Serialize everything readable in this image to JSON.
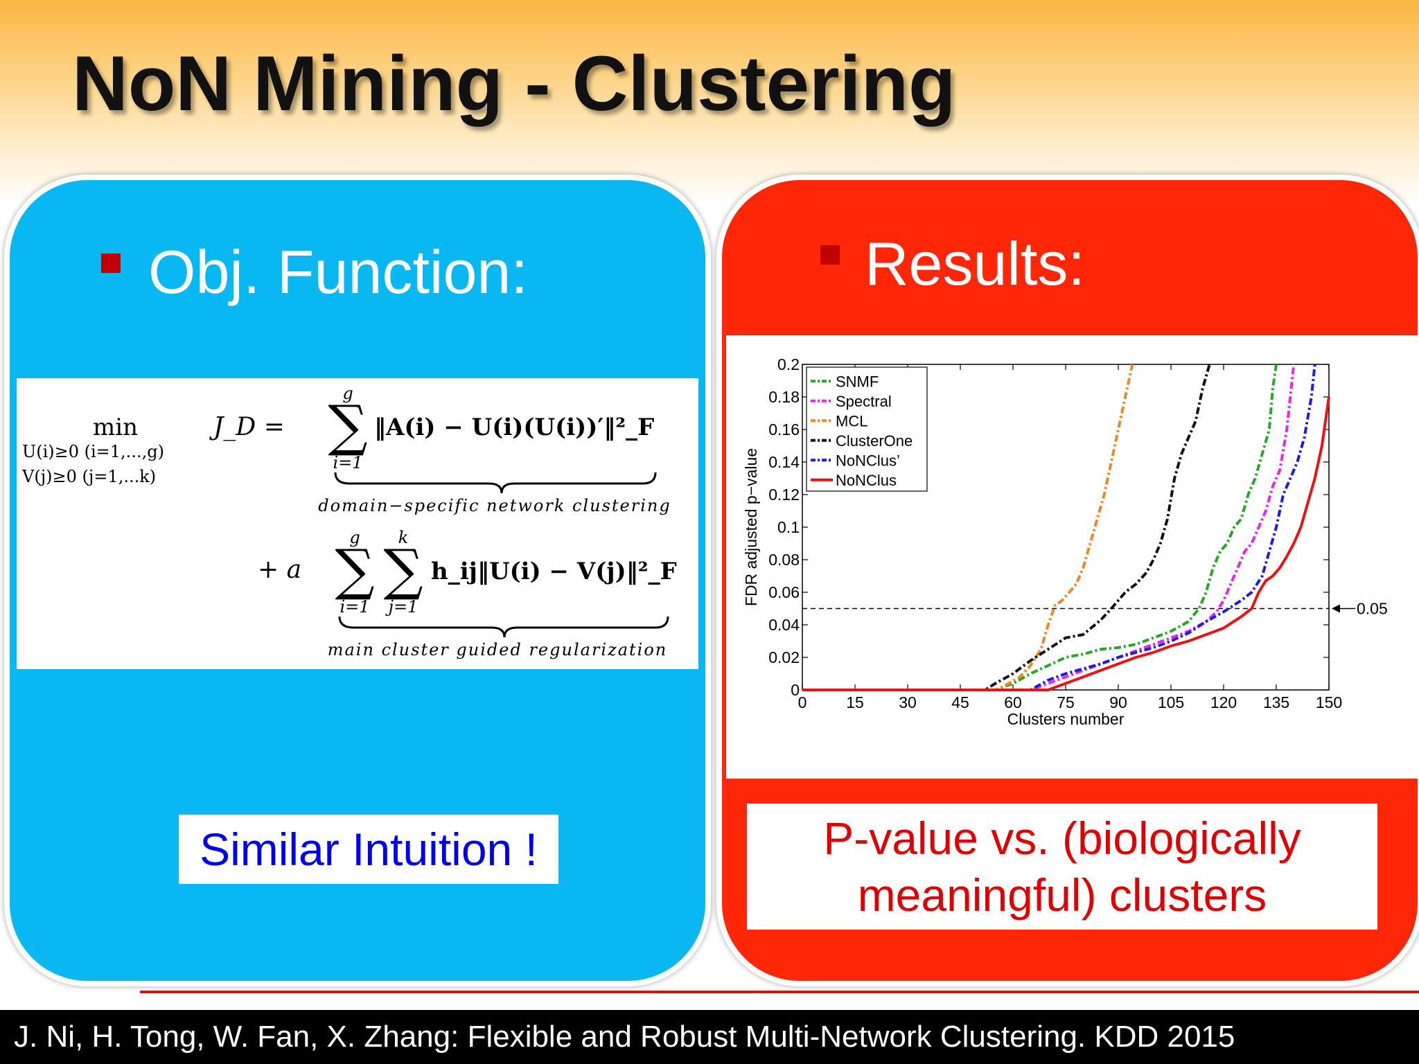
{
  "title": "NoN Mining - Clustering",
  "left_panel": {
    "heading": "Obj. Function:",
    "formula": {
      "min_op": "min",
      "min_sub_1": "U(i)≥0 (i=1,...,g)",
      "min_sub_2": "V(j)≥0 (j=1,...k)",
      "lhs": "J_D =",
      "term1": "‖A(i) − U(i)(U(i))′‖²_F",
      "term1_sum_top": "g",
      "term1_sum_bottom": "i=1",
      "term1_label": "domain−specific network clustering",
      "plus_a": "+ a",
      "term2": "h_ij‖U(i) − V(j)‖²_F",
      "term2_sum1_top": "g",
      "term2_sum1_bottom": "i=1",
      "term2_sum2_top": "k",
      "term2_sum2_bottom": "j=1",
      "term2_label": "main cluster guided regularization"
    },
    "note": "Similar Intuition !"
  },
  "right_panel": {
    "heading": "Results:",
    "caption_line1": "P-value vs. (biologically",
    "caption_line2": "meaningful) clusters"
  },
  "chart_data": {
    "type": "line",
    "xlabel": "Clusters number",
    "ylabel": "FDR adjusted p−value",
    "xlim": [
      0,
      150
    ],
    "ylim": [
      0,
      0.2
    ],
    "xticks": [
      0,
      15,
      30,
      45,
      60,
      75,
      90,
      105,
      120,
      135,
      150
    ],
    "yticks": [
      0,
      0.02,
      0.04,
      0.06,
      0.08,
      0.1,
      0.12,
      0.14,
      0.16,
      0.18,
      0.2
    ],
    "xtick_labels": [
      "0",
      "15",
      "30",
      "45",
      "60",
      "75",
      "90",
      "105",
      "120",
      "135",
      "150"
    ],
    "ytick_labels": [
      "0",
      "0.02",
      "0.04",
      "0.06",
      "0.08",
      "0.1",
      "0.12",
      "0.14",
      "0.16",
      "0.18",
      "0.2"
    ],
    "threshold": {
      "value": 0.05,
      "label": "0.05"
    },
    "legend_position": "top-left",
    "series": [
      {
        "name": "SNMF",
        "color": "#22aa22",
        "style": "dashdot",
        "x": [
          0,
          55,
          60,
          65,
          70,
          75,
          80,
          85,
          90,
          95,
          100,
          105,
          110,
          113,
          115,
          117,
          119,
          121,
          123,
          125,
          127,
          129,
          131,
          133,
          134,
          135
        ],
        "y": [
          0,
          0,
          0.004,
          0.01,
          0.015,
          0.02,
          0.022,
          0.025,
          0.026,
          0.028,
          0.032,
          0.036,
          0.042,
          0.05,
          0.06,
          0.075,
          0.085,
          0.09,
          0.1,
          0.105,
          0.12,
          0.13,
          0.145,
          0.16,
          0.185,
          0.2
        ]
      },
      {
        "name": "Spectral",
        "color": "#ee22ee",
        "style": "dashdot",
        "x": [
          0,
          65,
          70,
          75,
          80,
          85,
          90,
          95,
          100,
          105,
          110,
          115,
          118,
          120,
          122,
          124,
          126,
          128,
          130,
          132,
          134,
          136,
          138,
          140
        ],
        "y": [
          0,
          0,
          0.004,
          0.008,
          0.012,
          0.016,
          0.02,
          0.024,
          0.028,
          0.032,
          0.036,
          0.042,
          0.048,
          0.055,
          0.065,
          0.075,
          0.085,
          0.09,
          0.1,
          0.11,
          0.125,
          0.135,
          0.16,
          0.2
        ]
      },
      {
        "name": "MCL",
        "color": "#ee8822",
        "style": "dashdot",
        "x": [
          0,
          55,
          58,
          62,
          65,
          68,
          70,
          72,
          74,
          76,
          78,
          80,
          82,
          84,
          86,
          88,
          90,
          92,
          94
        ],
        "y": [
          0,
          0,
          0.003,
          0.008,
          0.015,
          0.025,
          0.04,
          0.052,
          0.055,
          0.06,
          0.065,
          0.075,
          0.09,
          0.105,
          0.12,
          0.14,
          0.16,
          0.18,
          0.2
        ]
      },
      {
        "name": "ClusterOne",
        "color": "#111111",
        "style": "dashdot",
        "x": [
          0,
          52,
          55,
          60,
          65,
          70,
          75,
          80,
          85,
          88,
          90,
          92,
          95,
          98,
          100,
          102,
          104,
          106,
          108,
          110,
          112,
          114,
          116
        ],
        "y": [
          0,
          0,
          0.004,
          0.01,
          0.018,
          0.025,
          0.032,
          0.034,
          0.043,
          0.05,
          0.055,
          0.06,
          0.065,
          0.072,
          0.08,
          0.09,
          0.105,
          0.13,
          0.145,
          0.155,
          0.165,
          0.185,
          0.2
        ]
      },
      {
        "name": "NoNClus’",
        "color": "#1a1aee",
        "style": "dashdot",
        "x": [
          0,
          65,
          70,
          75,
          80,
          85,
          90,
          95,
          100,
          105,
          110,
          115,
          120,
          125,
          128,
          131,
          133,
          135,
          137,
          139,
          141,
          143,
          145,
          146
        ],
        "y": [
          0,
          0,
          0.006,
          0.01,
          0.013,
          0.016,
          0.02,
          0.023,
          0.026,
          0.03,
          0.035,
          0.042,
          0.048,
          0.055,
          0.06,
          0.07,
          0.085,
          0.1,
          0.12,
          0.13,
          0.14,
          0.155,
          0.18,
          0.2
        ]
      },
      {
        "name": "NoNClus",
        "color": "#ee1111",
        "style": "solid",
        "x": [
          0,
          70,
          75,
          80,
          85,
          90,
          95,
          100,
          105,
          110,
          115,
          120,
          125,
          128,
          130,
          132,
          134,
          136,
          138,
          140,
          142,
          144,
          146,
          148,
          150
        ],
        "y": [
          0,
          0,
          0.004,
          0.008,
          0.012,
          0.016,
          0.02,
          0.023,
          0.027,
          0.03,
          0.034,
          0.038,
          0.045,
          0.05,
          0.06,
          0.067,
          0.07,
          0.075,
          0.082,
          0.09,
          0.1,
          0.115,
          0.13,
          0.15,
          0.18
        ]
      }
    ]
  },
  "footer": {
    "citation": "J. Ni, H. Tong, W. Fan, X. Zhang: Flexible and Robust Multi-Network Clustering. KDD 2015"
  }
}
